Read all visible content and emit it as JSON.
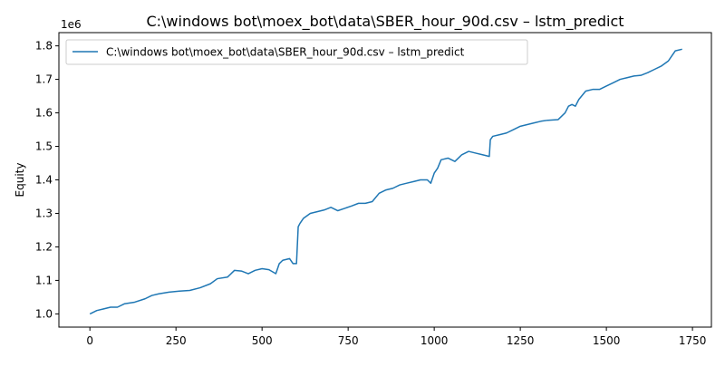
{
  "chart_data": {
    "type": "line",
    "title": "C:\\windows bot\\moex_bot\\data\\SBER_hour_90d.csv – lstm_predict",
    "xlabel": "",
    "ylabel": "Equity",
    "y_offset_label": "1e6",
    "xlim": [
      -90,
      1805
    ],
    "ylim": [
      0.9605,
      1.8395
    ],
    "x_ticks": [
      0,
      250,
      500,
      750,
      1000,
      1250,
      1500,
      1750
    ],
    "y_ticks": [
      1.0,
      1.1,
      1.2,
      1.3,
      1.4,
      1.5,
      1.6,
      1.7,
      1.8
    ],
    "x_tick_labels": [
      "0",
      "250",
      "500",
      "750",
      "1000",
      "1250",
      "1500",
      "1750"
    ],
    "y_tick_labels": [
      "1.0",
      "1.1",
      "1.2",
      "1.3",
      "1.4",
      "1.5",
      "1.6",
      "1.7",
      "1.8"
    ],
    "grid": false,
    "legend_position": "upper-left",
    "series": [
      {
        "name": "C:\\windows bot\\moex_bot\\data\\SBER_hour_90d.csv – lstm_predict",
        "color": "#1f77b4",
        "x": [
          0,
          20,
          40,
          60,
          80,
          100,
          130,
          160,
          180,
          200,
          230,
          260,
          290,
          320,
          350,
          370,
          400,
          420,
          440,
          460,
          480,
          500,
          520,
          540,
          550,
          560,
          580,
          590,
          600,
          605,
          610,
          620,
          640,
          660,
          680,
          700,
          720,
          740,
          760,
          780,
          800,
          820,
          840,
          860,
          880,
          900,
          920,
          940,
          960,
          980,
          990,
          1000,
          1010,
          1020,
          1040,
          1060,
          1080,
          1100,
          1120,
          1140,
          1160,
          1163,
          1170,
          1190,
          1210,
          1230,
          1250,
          1270,
          1290,
          1310,
          1330,
          1360,
          1380,
          1390,
          1400,
          1410,
          1420,
          1440,
          1460,
          1480,
          1500,
          1520,
          1540,
          1560,
          1580,
          1600,
          1620,
          1640,
          1660,
          1680,
          1690,
          1700,
          1720
        ],
        "values": [
          1.0,
          1.01,
          1.015,
          1.02,
          1.02,
          1.03,
          1.035,
          1.045,
          1.055,
          1.06,
          1.065,
          1.068,
          1.07,
          1.078,
          1.09,
          1.105,
          1.11,
          1.13,
          1.128,
          1.12,
          1.13,
          1.135,
          1.132,
          1.12,
          1.15,
          1.16,
          1.165,
          1.15,
          1.15,
          1.26,
          1.27,
          1.285,
          1.3,
          1.305,
          1.31,
          1.318,
          1.308,
          1.315,
          1.322,
          1.33,
          1.33,
          1.335,
          1.36,
          1.37,
          1.375,
          1.385,
          1.39,
          1.395,
          1.4,
          1.4,
          1.39,
          1.42,
          1.435,
          1.46,
          1.465,
          1.455,
          1.475,
          1.485,
          1.48,
          1.475,
          1.47,
          1.52,
          1.53,
          1.535,
          1.54,
          1.55,
          1.56,
          1.565,
          1.57,
          1.575,
          1.578,
          1.58,
          1.6,
          1.62,
          1.625,
          1.62,
          1.64,
          1.665,
          1.67,
          1.67,
          1.68,
          1.69,
          1.7,
          1.705,
          1.71,
          1.712,
          1.72,
          1.73,
          1.74,
          1.755,
          1.77,
          1.785,
          1.79
        ]
      }
    ]
  }
}
